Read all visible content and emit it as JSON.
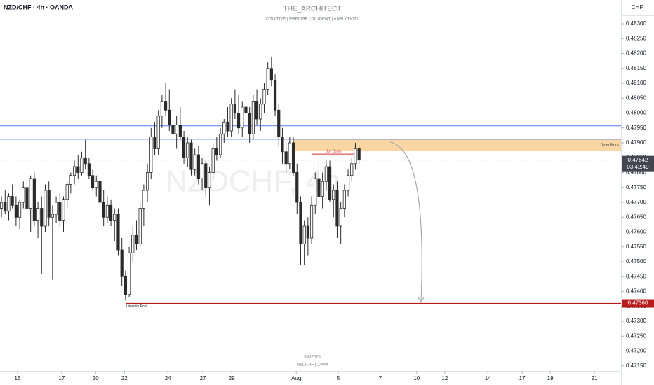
{
  "chart_data": {
    "type": "candlestick",
    "symbol_label": "NZD/CHF · 4h · OANDA",
    "title": "THE_ARCHITECT",
    "subtitle": "INTUITIVE | PRECISE | DILIGENT | ANALYTICAL",
    "watermark": "NZDCHF, 4h",
    "footer_date": "6/8/2025",
    "footer_symbol": "NZDCHF | 240M",
    "currency": "CHF",
    "up_color": "#ffffff",
    "down_color": "#2a2a2a",
    "ohlc": [
      [
        0.4768,
        0.4772,
        0.4765,
        0.477
      ],
      [
        0.477,
        0.4774,
        0.4766,
        0.4767
      ],
      [
        0.4767,
        0.4773,
        0.4764,
        0.4772
      ],
      [
        0.4772,
        0.4776,
        0.4768,
        0.4769
      ],
      [
        0.4769,
        0.4772,
        0.4762,
        0.4765
      ],
      [
        0.4765,
        0.4771,
        0.4761,
        0.477
      ],
      [
        0.477,
        0.4777,
        0.4768,
        0.4775
      ],
      [
        0.4775,
        0.4778,
        0.4766,
        0.4768
      ],
      [
        0.4768,
        0.4779,
        0.476,
        0.4778
      ],
      [
        0.4778,
        0.478,
        0.4762,
        0.4764
      ],
      [
        0.4764,
        0.477,
        0.4758,
        0.4768
      ],
      [
        0.4768,
        0.4772,
        0.4746,
        0.4762
      ],
      [
        0.4762,
        0.4776,
        0.476,
        0.4774
      ],
      [
        0.4774,
        0.4777,
        0.4762,
        0.4765
      ],
      [
        0.4765,
        0.4769,
        0.4744,
        0.4766
      ],
      [
        0.4766,
        0.4772,
        0.4763,
        0.477
      ],
      [
        0.477,
        0.4773,
        0.4762,
        0.4764
      ],
      [
        0.4764,
        0.4772,
        0.476,
        0.4771
      ],
      [
        0.4771,
        0.4777,
        0.4768,
        0.4776
      ],
      [
        0.4776,
        0.478,
        0.4773,
        0.4779
      ],
      [
        0.4779,
        0.4784,
        0.4776,
        0.4782
      ],
      [
        0.4782,
        0.4786,
        0.4778,
        0.478
      ],
      [
        0.478,
        0.4787,
        0.4779,
        0.4785
      ],
      [
        0.4785,
        0.4791,
        0.4781,
        0.4783
      ],
      [
        0.4783,
        0.4785,
        0.4778,
        0.4779
      ],
      [
        0.4779,
        0.4781,
        0.4774,
        0.4775
      ],
      [
        0.4775,
        0.4779,
        0.4772,
        0.4777
      ],
      [
        0.4777,
        0.4778,
        0.4768,
        0.477
      ],
      [
        0.477,
        0.4774,
        0.4762,
        0.4765
      ],
      [
        0.4765,
        0.4772,
        0.4763,
        0.4769
      ],
      [
        0.4769,
        0.4771,
        0.4762,
        0.4764
      ],
      [
        0.4764,
        0.4768,
        0.4757,
        0.4766
      ],
      [
        0.4766,
        0.4768,
        0.4752,
        0.4754
      ],
      [
        0.4754,
        0.4758,
        0.4742,
        0.4745
      ],
      [
        0.4745,
        0.4747,
        0.4737,
        0.4739
      ],
      [
        0.4739,
        0.4755,
        0.4738,
        0.4753
      ],
      [
        0.4753,
        0.4762,
        0.475,
        0.4759
      ],
      [
        0.4759,
        0.4764,
        0.4754,
        0.4756
      ],
      [
        0.4756,
        0.477,
        0.4755,
        0.4768
      ],
      [
        0.4768,
        0.4776,
        0.4762,
        0.4774
      ],
      [
        0.4774,
        0.4783,
        0.477,
        0.478
      ],
      [
        0.478,
        0.4795,
        0.4778,
        0.4792
      ],
      [
        0.4792,
        0.4797,
        0.4786,
        0.4788
      ],
      [
        0.4788,
        0.4801,
        0.4786,
        0.4799
      ],
      [
        0.4799,
        0.4806,
        0.4795,
        0.4804
      ],
      [
        0.4804,
        0.481,
        0.4799,
        0.4801
      ],
      [
        0.4801,
        0.4808,
        0.4794,
        0.4796
      ],
      [
        0.4796,
        0.48,
        0.479,
        0.4793
      ],
      [
        0.4793,
        0.4799,
        0.4788,
        0.4796
      ],
      [
        0.4796,
        0.4802,
        0.4791,
        0.4792
      ],
      [
        0.4792,
        0.4794,
        0.4783,
        0.4785
      ],
      [
        0.4785,
        0.4792,
        0.4782,
        0.479
      ],
      [
        0.479,
        0.4791,
        0.4779,
        0.4781
      ],
      [
        0.4781,
        0.4788,
        0.4779,
        0.4786
      ],
      [
        0.4786,
        0.4789,
        0.4776,
        0.4778
      ],
      [
        0.4778,
        0.4785,
        0.4774,
        0.4783
      ],
      [
        0.4783,
        0.4784,
        0.4772,
        0.4775
      ],
      [
        0.4775,
        0.4782,
        0.4769,
        0.478
      ],
      [
        0.478,
        0.479,
        0.4778,
        0.4788
      ],
      [
        0.4788,
        0.4792,
        0.4784,
        0.4786
      ],
      [
        0.4786,
        0.4795,
        0.4785,
        0.4793
      ],
      [
        0.4793,
        0.4798,
        0.479,
        0.4797
      ],
      [
        0.4797,
        0.4802,
        0.4792,
        0.4794
      ],
      [
        0.4794,
        0.4805,
        0.4792,
        0.4803
      ],
      [
        0.4803,
        0.4808,
        0.4798,
        0.48
      ],
      [
        0.48,
        0.4806,
        0.4793,
        0.4795
      ],
      [
        0.4795,
        0.4804,
        0.4792,
        0.4802
      ],
      [
        0.4802,
        0.4807,
        0.4798,
        0.48
      ],
      [
        0.48,
        0.4802,
        0.479,
        0.4793
      ],
      [
        0.4793,
        0.4806,
        0.4791,
        0.4804
      ],
      [
        0.4804,
        0.4808,
        0.4796,
        0.4798
      ],
      [
        0.4798,
        0.4805,
        0.4794,
        0.4803
      ],
      [
        0.4803,
        0.481,
        0.48,
        0.4808
      ],
      [
        0.4808,
        0.4817,
        0.4806,
        0.4815
      ],
      [
        0.4815,
        0.4819,
        0.4809,
        0.4811
      ],
      [
        0.4811,
        0.4813,
        0.4799,
        0.4801
      ],
      [
        0.4801,
        0.4803,
        0.4789,
        0.4792
      ],
      [
        0.4792,
        0.4795,
        0.4783,
        0.4787
      ],
      [
        0.4787,
        0.479,
        0.478,
        0.4783
      ],
      [
        0.4783,
        0.4792,
        0.4781,
        0.479
      ],
      [
        0.479,
        0.4792,
        0.4779,
        0.478
      ],
      [
        0.478,
        0.4783,
        0.4766,
        0.477
      ],
      [
        0.477,
        0.4772,
        0.4749,
        0.4756
      ],
      [
        0.4756,
        0.4764,
        0.4749,
        0.4762
      ],
      [
        0.4762,
        0.4765,
        0.4752,
        0.4758
      ],
      [
        0.4758,
        0.4772,
        0.4756,
        0.4769
      ],
      [
        0.4769,
        0.478,
        0.4766,
        0.4778
      ],
      [
        0.4778,
        0.4785,
        0.477,
        0.4772
      ],
      [
        0.4772,
        0.478,
        0.4768,
        0.4777
      ],
      [
        0.4777,
        0.4784,
        0.4774,
        0.4782
      ],
      [
        0.4782,
        0.4784,
        0.477,
        0.4771
      ],
      [
        0.4771,
        0.4776,
        0.4765,
        0.4774
      ],
      [
        0.4774,
        0.4777,
        0.4758,
        0.4762
      ],
      [
        0.4762,
        0.477,
        0.4756,
        0.4768
      ],
      [
        0.4768,
        0.4776,
        0.4765,
        0.4774
      ],
      [
        0.4774,
        0.4781,
        0.4772,
        0.4779
      ],
      [
        0.4779,
        0.4785,
        0.4777,
        0.4783
      ],
      [
        0.4783,
        0.479,
        0.4781,
        0.4788
      ],
      [
        0.4788,
        0.4789,
        0.4783,
        0.47842
      ]
    ],
    "xlim": [
      -0.4,
      169.8
    ],
    "xticks": [
      {
        "value": 4.4,
        "label": "15"
      },
      {
        "value": 16.5,
        "label": "17"
      },
      {
        "value": 25.8,
        "label": "20"
      },
      {
        "value": 33.7,
        "label": "22"
      },
      {
        "value": 45.6,
        "label": "24"
      },
      {
        "value": 55.2,
        "label": "27"
      },
      {
        "value": 63.1,
        "label": "29"
      },
      {
        "value": 80.8,
        "label": "Aug"
      },
      {
        "value": 92.3,
        "label": "5"
      },
      {
        "value": 103.8,
        "label": "7"
      },
      {
        "value": 113.8,
        "label": "10"
      },
      {
        "value": 121.5,
        "label": "12"
      },
      {
        "value": 133.3,
        "label": "14"
      },
      {
        "value": 142.7,
        "label": "17"
      },
      {
        "value": 150.4,
        "label": "19"
      },
      {
        "value": 162.5,
        "label": "21"
      }
    ],
    "ylim": [
      0.47133,
      0.4838
    ],
    "yticks": [
      {
        "value": 0.4715,
        "label": "0.47150"
      },
      {
        "value": 0.472,
        "label": "0.47200"
      },
      {
        "value": 0.4725,
        "label": "0.47250"
      },
      {
        "value": 0.473,
        "label": "0.47300"
      },
      {
        "value": 0.4735,
        "label": "0.47350"
      },
      {
        "value": 0.474,
        "label": "0.47400"
      },
      {
        "value": 0.4745,
        "label": "0.47450"
      },
      {
        "value": 0.475,
        "label": "0.47500"
      },
      {
        "value": 0.4755,
        "label": "0.47550"
      },
      {
        "value": 0.476,
        "label": "0.47600"
      },
      {
        "value": 0.4765,
        "label": "0.47650"
      },
      {
        "value": 0.477,
        "label": "0.47700"
      },
      {
        "value": 0.4775,
        "label": "0.47750"
      },
      {
        "value": 0.478,
        "label": "0.47800"
      },
      {
        "value": 0.4785,
        "label": "0.47850"
      },
      {
        "value": 0.479,
        "label": "0.47900"
      },
      {
        "value": 0.4795,
        "label": "0.47950"
      },
      {
        "value": 0.48,
        "label": "0.48000"
      },
      {
        "value": 0.4805,
        "label": "0.48050"
      },
      {
        "value": 0.481,
        "label": "0.48100"
      },
      {
        "value": 0.4815,
        "label": "0.48150"
      },
      {
        "value": 0.482,
        "label": "0.48200"
      },
      {
        "value": 0.4825,
        "label": "0.48250"
      },
      {
        "value": 0.483,
        "label": "0.48300"
      }
    ],
    "lines": [
      {
        "value": 0.47957,
        "color": "#5b7cf5"
      },
      {
        "value": 0.47912,
        "color": "#5b7cf5"
      }
    ],
    "order_block": {
      "label": "Order Block",
      "top": 0.47912,
      "bottom": 0.47872,
      "color": "#f9cf94"
    },
    "buy_scalp": {
      "label": "Buy Scalp",
      "value": 0.47862,
      "color": "#d32f2f"
    },
    "liquidity_pool": {
      "label": "Liquidity Pool",
      "value": 0.4736,
      "value_label": "0.47360",
      "color": "#b71c1c"
    },
    "last_price": 0.47842,
    "countdown": "03:42:49"
  }
}
